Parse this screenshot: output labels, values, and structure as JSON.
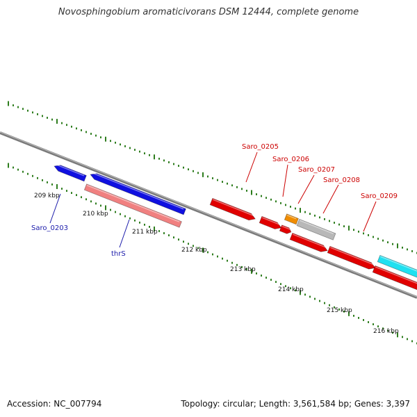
{
  "title": "Novosphingobium aromaticivorans DSM 12444, complete genome",
  "footer": {
    "accession": "Accession: NC_007794",
    "summary": "Topology: circular; Length: 3,561,584 bp; Genes: 3,397"
  },
  "colors": {
    "backbone": "#7a7a7a",
    "tick": "#2e7d1e",
    "gene_blue": "#1010e0",
    "gene_pink": "#f08080",
    "gene_red": "#e00000",
    "gene_orange": "#f08c00",
    "gene_gray": "#b8b8b8",
    "gene_cyan": "#20e0f0",
    "label_blue": "#1a1aaa",
    "label_red": "#cc0000"
  },
  "scale_labels": [
    "209 kbp",
    "210 kbp",
    "211 kbp",
    "212 kbp",
    "213 kbp",
    "214 kbp",
    "215 kbp",
    "216 kbp"
  ],
  "gene_labels": [
    {
      "name": "Saro_0203",
      "color": "label_blue"
    },
    {
      "name": "thrS",
      "color": "label_blue"
    },
    {
      "name": "Saro_0205",
      "color": "label_red"
    },
    {
      "name": "Saro_0206",
      "color": "label_red"
    },
    {
      "name": "Saro_0207",
      "color": "label_red"
    },
    {
      "name": "Saro_0208",
      "color": "label_red"
    },
    {
      "name": "Saro_0209",
      "color": "label_red"
    }
  ],
  "features": [
    {
      "color": "gene_blue",
      "strand": "-"
    },
    {
      "color": "gene_blue",
      "strand": "-"
    },
    {
      "color": "gene_pink",
      "strand": "-"
    },
    {
      "color": "gene_red",
      "strand": "+"
    },
    {
      "color": "gene_red",
      "strand": "+"
    },
    {
      "color": "gene_red",
      "strand": "+"
    },
    {
      "color": "gene_orange",
      "strand": "+"
    },
    {
      "color": "gene_gray",
      "strand": "+"
    },
    {
      "color": "gene_red",
      "strand": "+"
    },
    {
      "color": "gene_red",
      "strand": "+"
    },
    {
      "color": "gene_red",
      "strand": "+"
    },
    {
      "color": "gene_cyan",
      "strand": "+"
    }
  ]
}
